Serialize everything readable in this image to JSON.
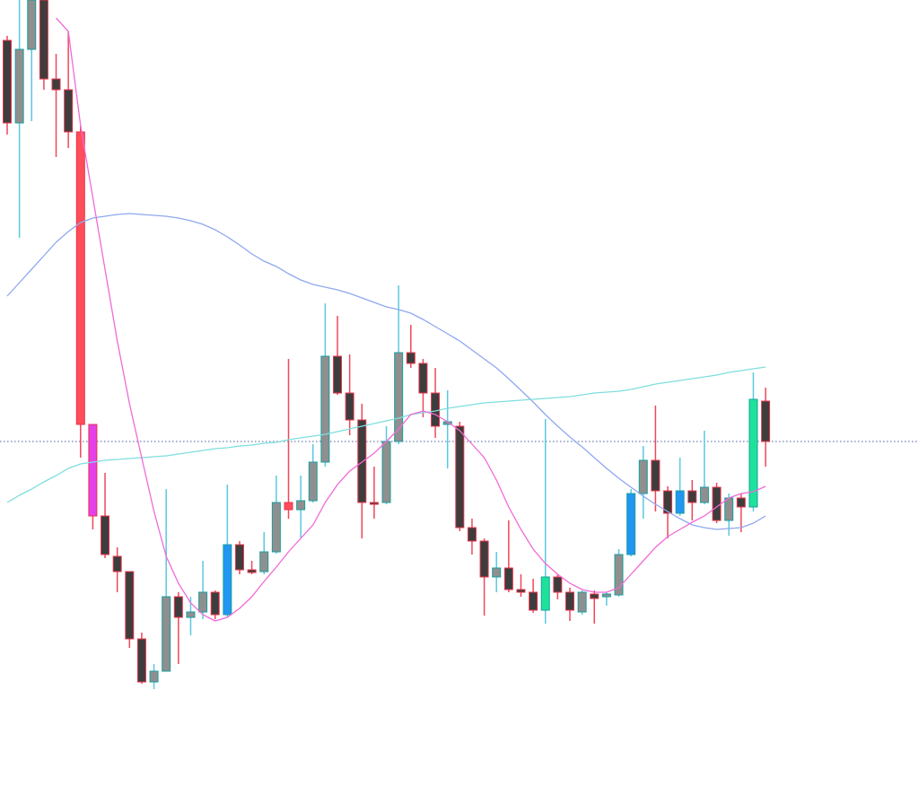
{
  "chart_data": {
    "type": "candlestick",
    "ylim": [
      0,
      896
    ],
    "open": [
      851,
      759,
      841,
      896,
      808,
      796,
      749,
      423,
      321,
      276,
      259,
      184,
      136,
      148,
      231,
      208,
      214,
      236,
      211,
      289,
      261,
      259,
      281,
      336,
      328,
      338,
      381,
      499,
      458,
      428,
      336,
      336,
      404,
      503,
      491,
      458,
      423,
      421,
      308,
      293,
      253,
      263,
      239,
      236,
      216,
      253,
      236,
      214,
      234,
      231,
      233,
      278,
      346,
      383,
      349,
      324,
      349,
      336,
      353,
      316,
      341,
      331,
      449
    ],
    "high": [
      856,
      896,
      896,
      896,
      836,
      861,
      756,
      423,
      369,
      286,
      259,
      191,
      156,
      351,
      236,
      231,
      271,
      238,
      356,
      293,
      271,
      303,
      366,
      496,
      366,
      401,
      558,
      544,
      501,
      446,
      376,
      421,
      578,
      534,
      496,
      486,
      461,
      426,
      318,
      296,
      281,
      316,
      256,
      251,
      429,
      256,
      241,
      238,
      238,
      236,
      284,
      351,
      399,
      444,
      354,
      386,
      361,
      416,
      358,
      346,
      346,
      481,
      464
    ],
    "low": [
      746,
      631,
      761,
      796,
      721,
      731,
      386,
      306,
      274,
      236,
      174,
      134,
      128,
      148,
      156,
      188,
      206,
      206,
      208,
      256,
      256,
      256,
      279,
      318,
      296,
      336,
      376,
      456,
      411,
      296,
      318,
      334,
      401,
      486,
      431,
      408,
      374,
      304,
      278,
      210,
      236,
      236,
      231,
      213,
      201,
      228,
      204,
      211,
      201,
      221,
      231,
      276,
      318,
      326,
      296,
      321,
      316,
      334,
      313,
      299,
      303,
      326,
      376
    ],
    "close": [
      759,
      841,
      896,
      808,
      796,
      749,
      423,
      321,
      278,
      259,
      184,
      136,
      148,
      231,
      208,
      214,
      236,
      211,
      289,
      261,
      258,
      281,
      336,
      328,
      338,
      381,
      499,
      458,
      428,
      336,
      334,
      404,
      503,
      491,
      458,
      421,
      426,
      308,
      293,
      253,
      263,
      239,
      236,
      216,
      253,
      236,
      216,
      236,
      229,
      234,
      278,
      346,
      383,
      349,
      324,
      349,
      336,
      353,
      316,
      341,
      331,
      451,
      404
    ],
    "body_colors": [
      "#3d3d3d",
      "#8f8f8f",
      "#8f8f8f",
      "#3d3d3d",
      "#3d3d3d",
      "#3d3d3d",
      "#ff4d5a",
      "#e541e8",
      "#3d3d3d",
      "#3d3d3d",
      "#3d3d3d",
      "#3d3d3d",
      "#8f8f8f",
      "#8f8f8f",
      "#3d3d3d",
      "#8f8f8f",
      "#8f8f8f",
      "#3d3d3d",
      "#2196f3",
      "#3d3d3d",
      "#3d3d3d",
      "#8f8f8f",
      "#8f8f8f",
      "#ff4d5a",
      "#8f8f8f",
      "#8f8f8f",
      "#8f8f8f",
      "#3d3d3d",
      "#3d3d3d",
      "#3d3d3d",
      "#3d3d3d",
      "#8f8f8f",
      "#8f8f8f",
      "#3d3d3d",
      "#3d3d3d",
      "#3d3d3d",
      "#8f8f8f",
      "#3d3d3d",
      "#3d3d3d",
      "#3d3d3d",
      "#8f8f8f",
      "#3d3d3d",
      "#3d3d3d",
      "#3d3d3d",
      "#1de39a",
      "#3d3d3d",
      "#3d3d3d",
      "#8f8f8f",
      "#3d3d3d",
      "#8f8f8f",
      "#8f8f8f",
      "#2196f3",
      "#8f8f8f",
      "#3d3d3d",
      "#3d3d3d",
      "#2196f3",
      "#3d3d3d",
      "#8f8f8f",
      "#3d3d3d",
      "#8f8f8f",
      "#3d3d3d",
      "#1de39a",
      "#3d3d3d"
    ],
    "up_color": "#1a9e9e",
    "down_color": "#e8344a",
    "up_wick": "#5bc8e0",
    "down_wick": "#f0475a",
    "overlays": [
      {
        "color": "#8fa8f0",
        "values": [
          566,
          581,
          596,
          611,
          626,
          638,
          648,
          653,
          655,
          657,
          658,
          657,
          656,
          655,
          653,
          650,
          646,
          640,
          632,
          623,
          613,
          605,
          599,
          591,
          584,
          579,
          576,
          573,
          569,
          564,
          559,
          554,
          551,
          547,
          540,
          532,
          524,
          516,
          506,
          496,
          486,
          474,
          461,
          448,
          434,
          421,
          409,
          398,
          386,
          374,
          363,
          353,
          343,
          334,
          326,
          318,
          311,
          308,
          306,
          307,
          308,
          313,
          321
        ]
      },
      {
        "color": "#7fdede",
        "values": [
          336,
          344,
          351,
          359,
          366,
          374,
          379,
          381,
          383,
          384,
          385,
          386,
          387,
          388,
          390,
          392,
          394,
          396,
          397,
          399,
          400,
          402,
          403,
          406,
          408,
          410,
          412,
          415,
          418,
          421,
          424,
          427,
          430,
          434,
          436,
          438,
          441,
          443,
          445,
          447,
          448,
          449,
          450,
          451,
          452,
          453,
          454,
          456,
          458,
          459,
          460,
          462,
          465,
          468,
          470,
          472,
          474,
          476,
          478,
          481,
          483,
          485,
          487
        ]
      },
      {
        "color": "#f06ad8",
        "values": [
          null,
          null,
          null,
          null,
          876,
          861,
          756,
          676,
          596,
          516,
          446,
          386,
          326,
          276,
          246,
          224,
          211,
          204,
          208,
          218,
          231,
          248,
          264,
          281,
          296,
          311,
          336,
          356,
          371,
          381,
          391,
          404,
          418,
          434,
          438,
          434,
          426,
          416,
          401,
          386,
          361,
          331,
          306,
          284,
          268,
          256,
          246,
          239,
          236,
          236,
          241,
          256,
          271,
          286,
          298,
          306,
          314,
          321,
          331,
          341,
          346,
          348,
          354
        ]
      }
    ],
    "price_line": {
      "color": "#6a7fb0",
      "dotted": true
    }
  }
}
